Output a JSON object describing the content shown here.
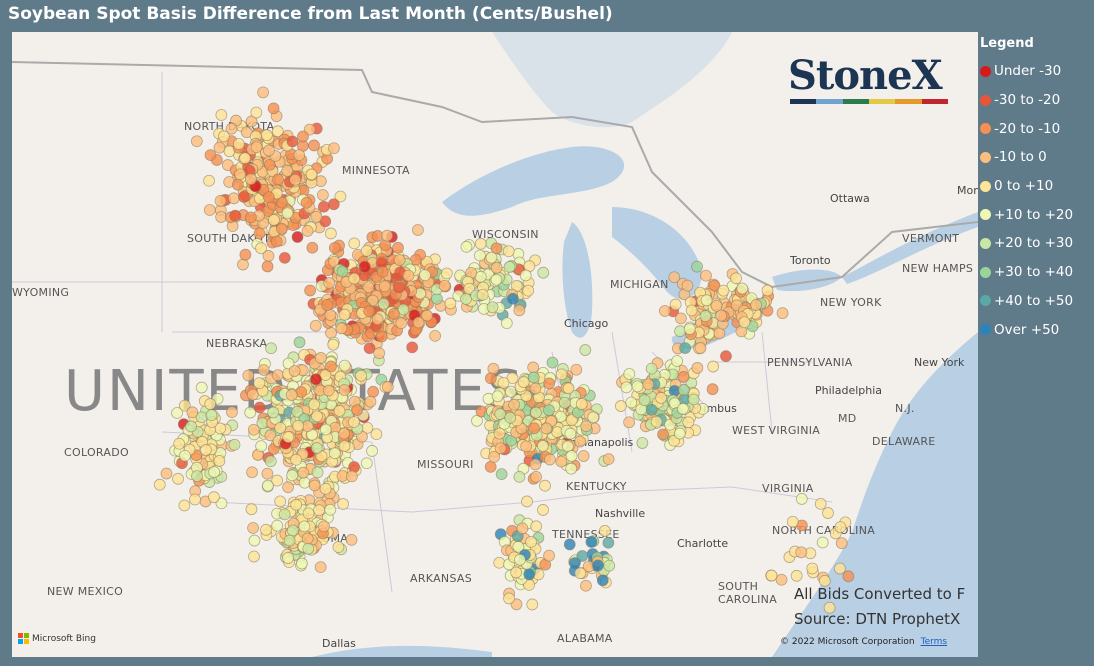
{
  "title": "Soybean Spot Basis Difference from Last Month (Cents/Bushel)",
  "legend": {
    "title": "Legend",
    "items": [
      {
        "label": "Under -30",
        "color": "#d7191c"
      },
      {
        "label": "-30 to -20",
        "color": "#e8553a"
      },
      {
        "label": "-20 to -10",
        "color": "#f59053"
      },
      {
        "label": "-10 to 0",
        "color": "#fdbe7d"
      },
      {
        "label": "0 to +10",
        "color": "#fee496"
      },
      {
        "label": "+10 to +20",
        "color": "#eef7b4"
      },
      {
        "label": "+20 to +30",
        "color": "#c9e7a4"
      },
      {
        "label": "+30 to +40",
        "color": "#9bd49b"
      },
      {
        "label": "+40 to +50",
        "color": "#5aa9a6"
      },
      {
        "label": "Over +50",
        "color": "#2b83ba"
      }
    ]
  },
  "logo": {
    "text": "StoneX",
    "colors": [
      "#1c3553",
      "#6fa3d0",
      "#2e7a4f",
      "#e3c84a",
      "#e39a2a",
      "#c0262d"
    ]
  },
  "map": {
    "country_label": "UNITED STATES",
    "states": [
      "NORTH DAKOTA",
      "MINNESOTA",
      "SOUTH DAKOTA",
      "WYOMING",
      "NEBRASKA",
      "COLORADO",
      "MISSOURI",
      "KENTUCKY",
      "TENNESSEE",
      "ARKANSAS",
      "OKLAHOMA",
      "NEW MEXICO",
      "ALABAMA",
      "NEW YORK",
      "PENNSYLVANIA",
      "WEST VIRGINIA",
      "VIRGINIA",
      "NORTH CAROLINA",
      "SOUTH CAROLINA",
      "MICHIGAN",
      "WISCONSIN",
      "VERMONT",
      "NEW HAMPS",
      "MD",
      "N.J.",
      "DELAWARE"
    ],
    "cities": [
      "Ottawa",
      "Montreal",
      "Toronto",
      "Chicago",
      "Columbus",
      "Philadelphia",
      "New York",
      "Nashville",
      "Charlotte",
      "Dallas",
      "Indianapolis"
    ],
    "note_line1": "All Bids Converted to F",
    "note_line2": "Source: DTN ProphetX",
    "copyright": "© 2022 Microsoft Corporation",
    "terms": "Terms",
    "bing": "Microsoft Bing"
  }
}
